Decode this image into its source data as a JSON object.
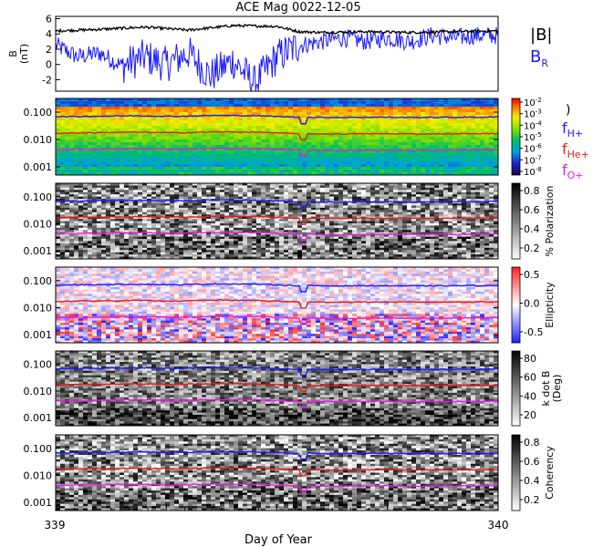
{
  "title": "ACE Mag 0022-12-05",
  "xlabel": "Day of Year",
  "x_ticks": [
    "339",
    "340"
  ],
  "colors": {
    "bmag": "#000000",
    "br": "#1a1aff",
    "f_h": "#1a1aff",
    "f_he": "#e61a1a",
    "f_o": "#e61ae6"
  },
  "chart_data": [
    {
      "type": "line",
      "panel": "magnetic-field",
      "ylabel": "B (nT)",
      "ylabel_parts": [
        "B",
        "(nT)"
      ],
      "ylim": [
        -3.5,
        6.3
      ],
      "y_ticks": [
        "6",
        "4",
        "2",
        "0",
        "-2"
      ],
      "x_range": [
        339,
        340
      ],
      "series": [
        {
          "name": "|B|",
          "sub": "",
          "x": [
            339.0,
            339.1,
            339.2,
            339.3,
            339.4,
            339.5,
            339.55,
            339.6,
            339.7,
            339.8,
            339.9,
            340.0
          ],
          "values": [
            4.4,
            4.6,
            4.9,
            4.5,
            5.1,
            5.0,
            4.3,
            4.2,
            4.3,
            4.2,
            4.3,
            4.4
          ]
        },
        {
          "name": "B",
          "sub": "R",
          "x": [
            339.0,
            339.05,
            339.1,
            339.15,
            339.2,
            339.25,
            339.3,
            339.35,
            339.4,
            339.45,
            339.5,
            339.55,
            339.6,
            339.65,
            339.7,
            339.75,
            339.8,
            339.85,
            339.9,
            339.95,
            340.0
          ],
          "values": [
            2.5,
            1.0,
            1.5,
            -0.2,
            1.0,
            0.0,
            1.5,
            -1.5,
            0.5,
            -2.5,
            1.0,
            2.5,
            3.0,
            3.5,
            3.0,
            3.5,
            3.0,
            3.8,
            3.5,
            3.8,
            3.8
          ]
        }
      ]
    },
    {
      "type": "heatmap",
      "panel": "power",
      "ylabel": "",
      "y_ticks": [
        "0.100",
        "0.010",
        "0.001"
      ],
      "colorbar_ticks_exp": [
        "-2",
        "-3",
        "-4",
        "-5",
        "-6",
        "-7",
        "-8"
      ],
      "colorbar_base": "10",
      "colormap": "rainbow"
    },
    {
      "type": "heatmap",
      "panel": "polarization",
      "ylabel": "",
      "y_ticks": [
        "0.100",
        "0.010",
        "0.001"
      ],
      "colorbar_label": "% Polarization",
      "colorbar_ticks": [
        "0.8",
        "0.6",
        "0.4",
        "0.2"
      ],
      "colormap": "gray"
    },
    {
      "type": "heatmap",
      "panel": "ellipticity",
      "ylabel": "",
      "y_ticks": [
        "0.100",
        "0.010",
        "0.001"
      ],
      "colorbar_label": "Ellipticity",
      "colorbar_ticks": [
        "0.5",
        "0.0",
        "-0.5"
      ],
      "colormap": "bwr"
    },
    {
      "type": "heatmap",
      "panel": "k-dot-b",
      "ylabel": "",
      "y_ticks": [
        "0.100",
        "0.010",
        "0.001"
      ],
      "colorbar_label_lines": [
        "k dot B",
        "(Deg)"
      ],
      "colorbar_ticks": [
        "80",
        "60",
        "40",
        "20"
      ],
      "colormap": "gray"
    },
    {
      "type": "heatmap",
      "panel": "coherency",
      "ylabel": "",
      "y_ticks": [
        "0.100",
        "0.010",
        "0.001"
      ],
      "colorbar_label": "Coherency",
      "colorbar_ticks": [
        "0.8",
        "0.6",
        "0.4",
        "0.2"
      ],
      "colormap": "gray"
    }
  ],
  "gyro_lines": {
    "ylim_log": [
      -3.3,
      -0.5
    ],
    "series": [
      {
        "name": "f",
        "sub": "H+",
        "values": [
          0.068,
          0.071,
          0.074,
          0.07,
          0.076,
          0.074,
          0.065,
          0.064,
          0.065,
          0.064,
          0.065,
          0.066
        ]
      },
      {
        "name": "f",
        "sub": "He+",
        "values": [
          0.017,
          0.0178,
          0.0185,
          0.0175,
          0.019,
          0.0185,
          0.0162,
          0.016,
          0.0162,
          0.016,
          0.0162,
          0.0165
        ]
      },
      {
        "name": "f",
        "sub": "O+",
        "values": [
          0.0043,
          0.0045,
          0.0047,
          0.0044,
          0.0048,
          0.0047,
          0.0041,
          0.004,
          0.0041,
          0.004,
          0.0041,
          0.0042
        ]
      }
    ]
  },
  "legend": {
    "bmag": "|B|",
    "br_main": "B",
    "br_sub": "R",
    "ions": [
      {
        "main": "f",
        "sub": "H+"
      },
      {
        "main": "f",
        "sub": "He+"
      },
      {
        "main": "f",
        "sub": "O+"
      }
    ],
    "open_paren": ")"
  }
}
